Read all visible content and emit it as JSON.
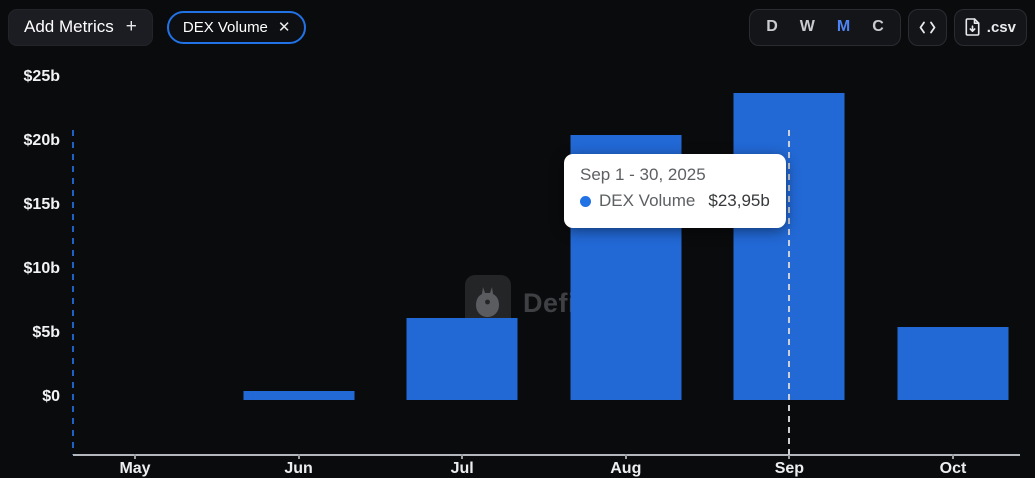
{
  "header": {
    "add_metrics": {
      "label": "Add Metrics",
      "plus_icon": "+"
    },
    "metric_pill": {
      "label": "DEX Volume",
      "close_icon": "✕",
      "border_color": "#2172e5"
    },
    "intervals": [
      {
        "label": "D",
        "active": false
      },
      {
        "label": "W",
        "active": false
      },
      {
        "label": "M",
        "active": true
      },
      {
        "label": "C",
        "active": false
      }
    ],
    "embed_button": {
      "icon": "code-brackets"
    },
    "csv_button": {
      "label": ".csv",
      "icon": "file-download"
    }
  },
  "chart_data": {
    "type": "bar",
    "title": "DEX Volume",
    "categories": [
      "May",
      "Jun",
      "Jul",
      "Aug",
      "Sep",
      "Oct"
    ],
    "values": [
      0,
      0.7,
      6.4,
      20.7,
      23.95,
      5.7
    ],
    "unit": "USD billions",
    "xlabel": "",
    "ylabel": "",
    "ylim": [
      0,
      25
    ],
    "yticks": [
      {
        "label": "$0",
        "value": 0
      },
      {
        "label": "$5b",
        "value": 5
      },
      {
        "label": "$10b",
        "value": 10
      },
      {
        "label": "$15b",
        "value": 15
      },
      {
        "label": "$20b",
        "value": 20
      },
      {
        "label": "$25b",
        "value": 25
      }
    ],
    "bar_color": "#2269d6",
    "grid": false,
    "legend_position": "none",
    "highlighted_category": "Sep"
  },
  "tooltip": {
    "date_range": "Sep 1 - 30, 2025",
    "series_label": "DEX Volume",
    "value": "$23,95b",
    "dot_color": "#2172e5"
  },
  "watermark": {
    "text": "DefiLlama",
    "logo": "defillama-llama-logo"
  },
  "colors": {
    "background": "#0a0b0d",
    "bar": "#2269d6",
    "accent_blue": "#2172e5",
    "active_interval": "#4d83f2",
    "axis_line": "#b4b7bb",
    "tooltip_bg": "#ffffff"
  }
}
